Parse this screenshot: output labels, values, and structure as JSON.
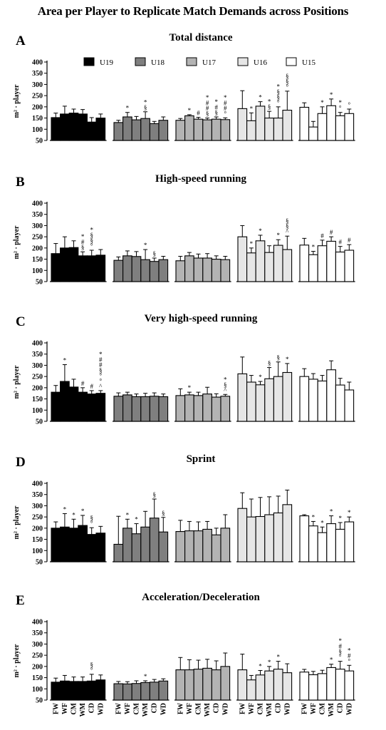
{
  "figure_title": "Area per Player to Replicate Match Demands across Positions",
  "legend": [
    {
      "label": "U19",
      "color": "#000000"
    },
    {
      "label": "U18",
      "color": "#7f7f7f"
    },
    {
      "label": "U17",
      "color": "#b3b3b3"
    },
    {
      "label": "U16",
      "color": "#e6e6e6"
    },
    {
      "label": "U15",
      "color": "#ffffff"
    }
  ],
  "groups": [
    "U19",
    "U18",
    "U17",
    "U16",
    "U15"
  ],
  "positions": [
    "FW",
    "WF",
    "CM",
    "WM",
    "CD",
    "WD"
  ],
  "chart_data": [
    {
      "panel": "A",
      "title": "Total distance",
      "type": "bar",
      "ylabel": "m² · player",
      "ylim": [
        50,
        400
      ],
      "yticks": [
        50,
        100,
        150,
        200,
        250,
        300,
        350,
        400
      ],
      "series": [
        {
          "group": "U19",
          "values": [
            152,
            168,
            172,
            168,
            132,
            150
          ],
          "errors": [
            20,
            35,
            18,
            20,
            20,
            18
          ],
          "annotations": [
            "",
            "",
            "",
            "",
            "",
            ""
          ]
        },
        {
          "group": "U18",
          "values": [
            130,
            155,
            142,
            148,
            125,
            140
          ],
          "errors": [
            10,
            20,
            15,
            30,
            10,
            15
          ],
          "annotations": [
            "",
            "*",
            "",
            "*\n§",
            "",
            ""
          ]
        },
        {
          "group": "U17",
          "values": [
            140,
            160,
            145,
            142,
            145,
            143
          ],
          "errors": [
            8,
            5,
            8,
            8,
            10,
            8
          ],
          "annotations": [
            "",
            "*",
            "#",
            "*\n#\n#\n§",
            "*\n#\n§",
            "*\n#\n#\n°"
          ]
        },
        {
          "group": "U16",
          "values": [
            192,
            138,
            203,
            150,
            150,
            185
          ],
          "errors": [
            80,
            35,
            20,
            30,
            50,
            85
          ],
          "annotations": [
            "",
            "*",
            "*",
            "*\n§",
            "*\n§\n§\n°",
            "§\n§\n°"
          ]
        },
        {
          "group": "U15",
          "values": [
            198,
            110,
            170,
            205,
            160,
            170
          ],
          "errors": [
            20,
            25,
            30,
            30,
            15,
            20
          ],
          "annotations": [
            "",
            "",
            "*",
            "*",
            "*\n°",
            "°"
          ]
        }
      ]
    },
    {
      "panel": "B",
      "title": "High-speed running",
      "type": "bar",
      "ylabel": "m² · player",
      "ylim": [
        50,
        400
      ],
      "yticks": [
        50,
        100,
        150,
        200,
        250,
        300,
        350,
        400
      ],
      "series": [
        {
          "group": "U19",
          "values": [
            175,
            200,
            202,
            165,
            165,
            168
          ],
          "errors": [
            45,
            50,
            30,
            18,
            25,
            25
          ],
          "annotations": [
            "",
            "",
            "",
            "*\n#\n§",
            "*\n§\n§\n°",
            ""
          ]
        },
        {
          "group": "U18",
          "values": [
            145,
            165,
            162,
            148,
            140,
            148
          ],
          "errors": [
            15,
            22,
            22,
            45,
            15,
            15
          ],
          "annotations": [
            "",
            "",
            "",
            "*",
            "§",
            ""
          ]
        },
        {
          "group": "U17",
          "values": [
            143,
            165,
            155,
            155,
            150,
            148
          ],
          "errors": [
            20,
            15,
            18,
            20,
            15,
            15
          ],
          "annotations": [
            "",
            "",
            "",
            "",
            "",
            ""
          ]
        },
        {
          "group": "U16",
          "values": [
            250,
            178,
            232,
            180,
            212,
            193
          ],
          "errors": [
            50,
            22,
            25,
            30,
            25,
            60
          ],
          "annotations": [
            "",
            "*",
            "*",
            "",
            "*",
            "§\n§\n^"
          ]
        },
        {
          "group": "U15",
          "values": [
            213,
            170,
            210,
            230,
            182,
            190
          ],
          "errors": [
            30,
            15,
            25,
            20,
            25,
            25
          ],
          "annotations": [
            "",
            "*",
            "#",
            "#",
            "#",
            "#"
          ]
        }
      ]
    },
    {
      "panel": "C",
      "title": "Very high-speed running",
      "type": "bar",
      "ylabel": "m² · player",
      "ylim": [
        50,
        400
      ],
      "yticks": [
        50,
        100,
        150,
        200,
        250,
        300,
        350,
        400
      ],
      "series": [
        {
          "group": "U19",
          "values": [
            180,
            228,
            203,
            180,
            172,
            175
          ],
          "errors": [
            30,
            75,
            35,
            20,
            15,
            12
          ],
          "annotations": [
            "",
            "*",
            "",
            "#",
            "#",
            "*\n#\n#\n§\n°\n°\n^"
          ]
        },
        {
          "group": "U18",
          "values": [
            162,
            168,
            160,
            160,
            162,
            160
          ],
          "errors": [
            15,
            12,
            12,
            15,
            15,
            12
          ],
          "annotations": [
            "",
            "",
            "",
            "",
            "",
            ""
          ]
        },
        {
          "group": "U17",
          "values": [
            165,
            168,
            165,
            172,
            158,
            162
          ],
          "errors": [
            30,
            12,
            15,
            30,
            15,
            8
          ],
          "annotations": [
            "",
            "*",
            "",
            "",
            "",
            "*\n§\n^"
          ]
        },
        {
          "group": "U16",
          "values": [
            262,
            225,
            213,
            240,
            250,
            268
          ],
          "errors": [
            75,
            30,
            15,
            50,
            65,
            40
          ],
          "annotations": [
            "",
            "",
            "*",
            "§",
            "§",
            "*"
          ]
        },
        {
          "group": "U15",
          "values": [
            250,
            238,
            230,
            280,
            212,
            190
          ],
          "errors": [
            35,
            25,
            25,
            40,
            30,
            35
          ],
          "annotations": [
            "",
            "",
            "",
            "",
            "",
            ""
          ]
        }
      ]
    },
    {
      "panel": "D",
      "title": "Sprint",
      "type": "bar",
      "ylabel": "m² · player",
      "ylim": [
        50,
        400
      ],
      "yticks": [
        50,
        100,
        150,
        200,
        250,
        300,
        350,
        400
      ],
      "series": [
        {
          "group": "U19",
          "values": [
            200,
            205,
            200,
            212,
            172,
            178
          ],
          "errors": [
            28,
            60,
            40,
            45,
            30,
            30
          ],
          "annotations": [
            "",
            "*",
            "*",
            "*",
            "§\n°",
            ""
          ]
        },
        {
          "group": "U18",
          "values": [
            128,
            200,
            175,
            205,
            245,
            183
          ],
          "errors": [
            125,
            40,
            45,
            70,
            85,
            65
          ],
          "annotations": [
            "",
            "*",
            "*",
            "",
            "§",
            "§"
          ]
        },
        {
          "group": "U17",
          "values": [
            185,
            188,
            188,
            195,
            170,
            200
          ],
          "errors": [
            50,
            42,
            40,
            35,
            30,
            60
          ],
          "annotations": [
            "",
            "",
            "",
            "",
            "",
            ""
          ]
        },
        {
          "group": "U16",
          "values": [
            288,
            250,
            252,
            260,
            268,
            305
          ],
          "errors": [
            70,
            80,
            85,
            80,
            75,
            65
          ],
          "annotations": [
            "",
            "",
            "",
            "",
            "",
            ""
          ]
        },
        {
          "group": "U15",
          "values": [
            255,
            210,
            180,
            220,
            195,
            228
          ],
          "errors": [
            5,
            20,
            25,
            35,
            30,
            22
          ],
          "annotations": [
            "",
            "*",
            "*",
            "*",
            "*",
            "*"
          ]
        }
      ]
    },
    {
      "panel": "E",
      "title": "Acceleration/Deceleration",
      "type": "bar",
      "ylabel": "m² · player",
      "ylim": [
        50,
        400
      ],
      "yticks": [
        50,
        100,
        150,
        200,
        250,
        300,
        350,
        400
      ],
      "series": [
        {
          "group": "U19",
          "values": [
            130,
            135,
            133,
            133,
            135,
            140
          ],
          "errors": [
            18,
            25,
            20,
            20,
            30,
            22
          ],
          "annotations": [
            "",
            "",
            "",
            "",
            "§\n°",
            ""
          ]
        },
        {
          "group": "U18",
          "values": [
            123,
            122,
            124,
            128,
            130,
            135
          ],
          "errors": [
            10,
            10,
            12,
            8,
            12,
            10
          ],
          "annotations": [
            "",
            "",
            "",
            "*",
            "",
            ""
          ]
        },
        {
          "group": "U17",
          "values": [
            185,
            185,
            188,
            192,
            185,
            200
          ],
          "errors": [
            55,
            45,
            40,
            40,
            40,
            60
          ],
          "annotations": [
            "",
            "",
            "",
            "",
            "",
            ""
          ]
        },
        {
          "group": "U16",
          "values": [
            185,
            140,
            162,
            180,
            188,
            172
          ],
          "errors": [
            70,
            20,
            20,
            20,
            35,
            40
          ],
          "annotations": [
            "",
            "",
            "*",
            "*",
            "*",
            ""
          ]
        },
        {
          "group": "U15",
          "values": [
            175,
            163,
            168,
            195,
            188,
            180
          ],
          "errors": [
            12,
            15,
            15,
            15,
            35,
            25
          ],
          "annotations": [
            "",
            "",
            "",
            "*",
            "*\n#\n§\n°",
            "*\n#\n°"
          ]
        }
      ]
    }
  ]
}
